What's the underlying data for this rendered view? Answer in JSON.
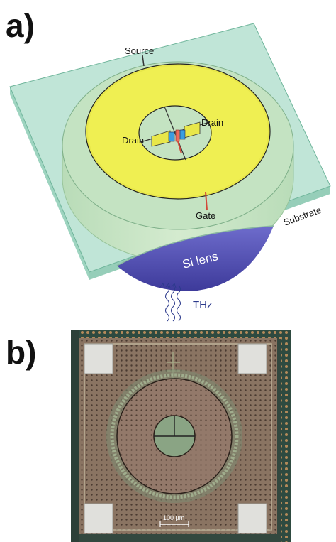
{
  "panel_a": {
    "label": "a)",
    "labels": {
      "source": "Source",
      "drain_left": "Drain",
      "drain_right": "Drain",
      "gate": "Gate",
      "substrate": "Substrate",
      "si_lens": "Si lens",
      "thz": "THz"
    },
    "colors": {
      "substrate": "#9fd9c3",
      "lens_body": "#c8e4c4",
      "ring": "#efef4a",
      "si_lens": "#5b57b8",
      "thz_text": "#2c3a8c",
      "gate_line": "#d24a3a"
    }
  },
  "panel_b": {
    "label": "b)",
    "scale_bar": "100 µm",
    "colors": {
      "chip_border": "#3e5a4f",
      "chip_fill": "#8a7565",
      "pad": "#e0e0dc",
      "ring_fill": "#94786a"
    }
  }
}
